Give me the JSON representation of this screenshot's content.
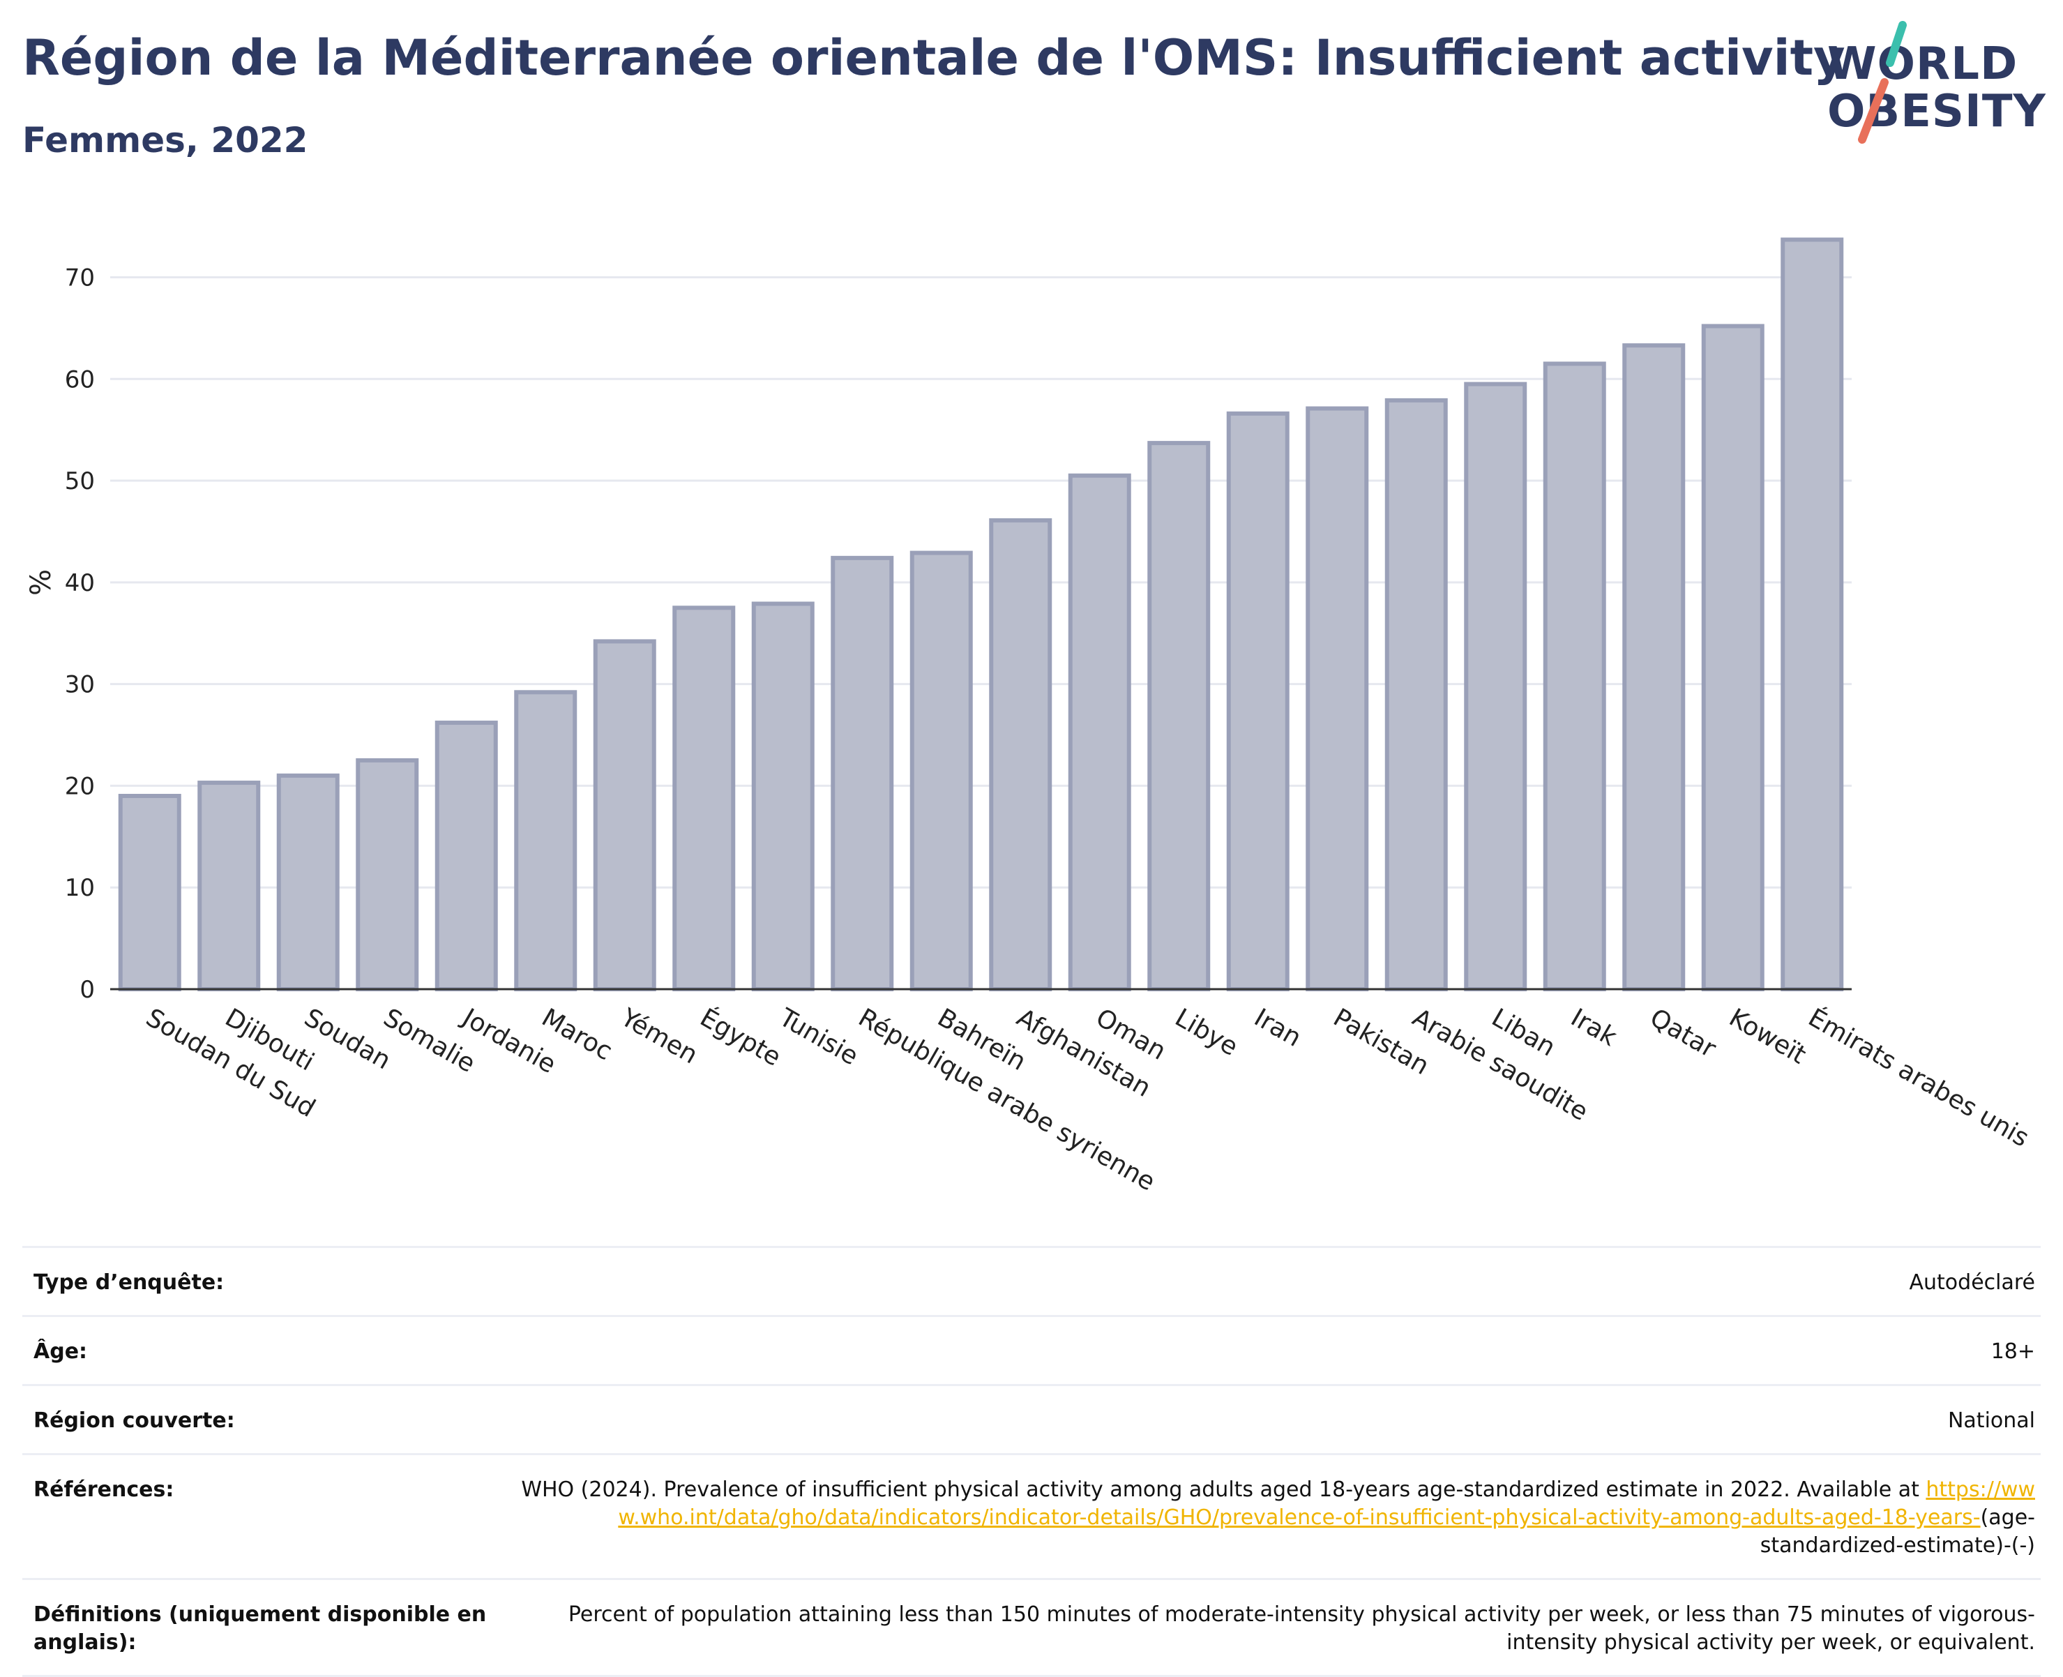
{
  "header": {
    "title": "Région de la Méditerranée orientale de l'OMS: Insufficient activity",
    "subtitle": "Femmes, 2022"
  },
  "logo": {
    "line1": "WORLD",
    "line2": "OBESITY",
    "accent_teal": "#3bbfad",
    "accent_coral": "#e8705a"
  },
  "colors": {
    "bar_fill": "#b9bdcc",
    "bar_stroke": "#9aa0b8",
    "title": "#2e3a62",
    "link": "#f0b400"
  },
  "chart_data": {
    "type": "bar",
    "title": "Région de la Méditerranée orientale de l'OMS: Insufficient activity",
    "subtitle": "Femmes, 2022",
    "xlabel": "",
    "ylabel": "%",
    "ylim": [
      0,
      76
    ],
    "yticks": [
      0,
      10,
      20,
      30,
      40,
      50,
      60,
      70
    ],
    "grid": true,
    "categories": [
      "Soudan du Sud",
      "Djibouti",
      "Soudan",
      "Somalie",
      "Jordanie",
      "Maroc",
      "Yémen",
      "Égypte",
      "Tunisie",
      "République arabe syrienne",
      "Bahreïn",
      "Afghanistan",
      "Oman",
      "Libye",
      "Iran",
      "Pakistan",
      "Arabie saoudite",
      "Liban",
      "Irak",
      "Qatar",
      "Koweït",
      "Émirats arabes unis"
    ],
    "values": [
      19.0,
      20.3,
      21.0,
      22.5,
      26.2,
      29.2,
      34.2,
      37.5,
      37.9,
      42.4,
      42.9,
      46.1,
      50.5,
      53.7,
      56.6,
      57.1,
      57.9,
      59.5,
      61.5,
      63.3,
      65.2,
      73.7
    ]
  },
  "meta": {
    "rows": [
      {
        "label": "Type d’enquête:",
        "value": "Autodéclaré"
      },
      {
        "label": "Âge:",
        "value": "18+"
      },
      {
        "label": "Région couverte:",
        "value": "National"
      }
    ],
    "references": {
      "label": "Références:",
      "text": "WHO (2024). Prevalence of insufficient physical activity among adults aged 18-years age-standardized estimate in 2022. Available at",
      "link": "https://www.who.int/data/gho/data/indicators/indicator-details/GHO/prevalence-of-insufficient-physical-activity-among-adults-aged-18-years-",
      "suffix": "(age-standardized-estimate)-(-)"
    },
    "definitions": {
      "label": "Définitions (uniquement disponible en anglais):",
      "value": "Percent of population attaining less than 150 minutes of moderate-intensity physical activity per week, or less than 75 minutes of vigorous-intensity physical activity per week, or equivalent."
    }
  }
}
